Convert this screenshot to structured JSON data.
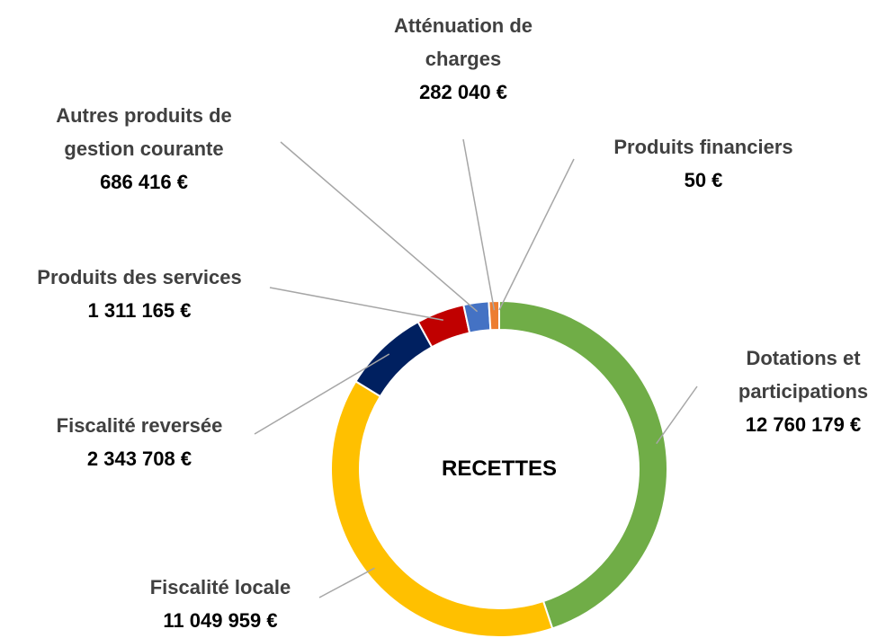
{
  "chart_data": {
    "type": "donut",
    "center_label": "RECETTES",
    "categories": [
      "Dotations et participations",
      "Fiscalité locale",
      "Fiscalité reversée",
      "Produits des services",
      "Autres produits de gestion courante",
      "Atténuation de charges",
      "Produits financiers"
    ],
    "values": [
      12760179,
      11049959,
      2343708,
      1311165,
      686416,
      282040,
      50
    ],
    "value_labels": [
      "12 760 179 €",
      "11 049 959 €",
      "2 343 708 €",
      "1 311 165 €",
      "686 416 €",
      "282 040 €",
      "50 €"
    ],
    "colors": [
      "#70ad47",
      "#ffc000",
      "#002060",
      "#c00000",
      "#4472c4",
      "#ed7d31",
      "#f08a3c"
    ]
  }
}
